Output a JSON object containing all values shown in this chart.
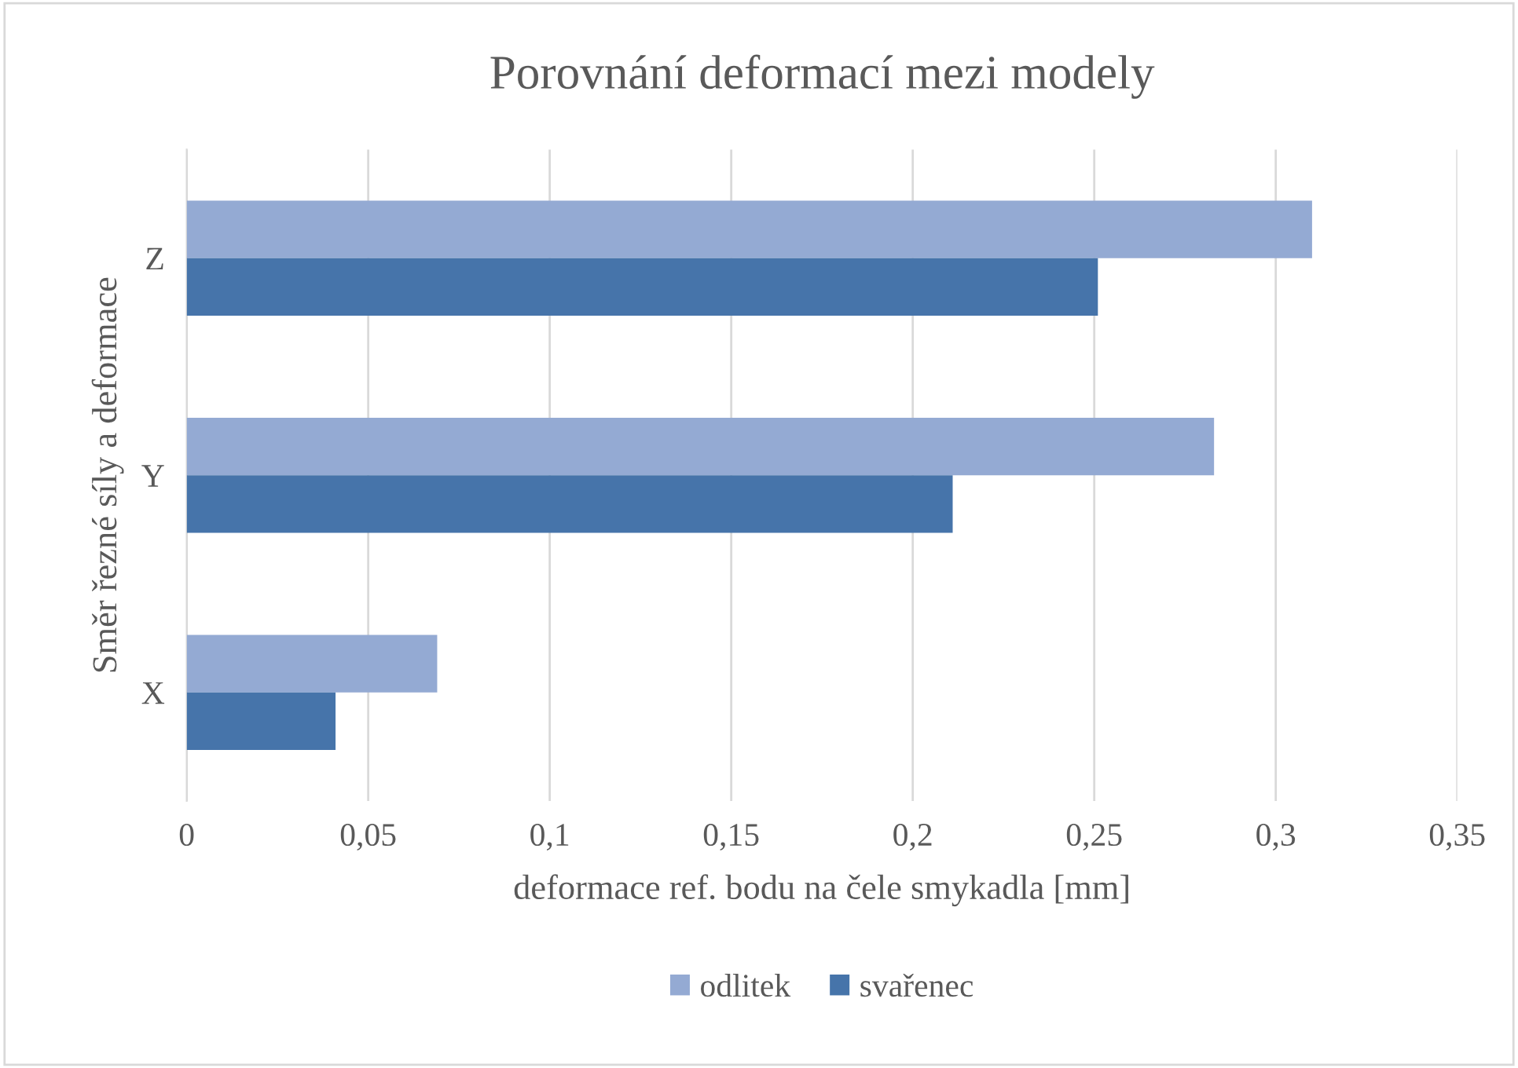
{
  "chart_data": {
    "type": "bar",
    "orientation": "horizontal",
    "title": "Porovnání deformací mezi modely",
    "xlabel": "deformace ref. bodu na čele smykadla [mm]",
    "ylabel": "Směr řezné síly a deformace",
    "categories": [
      "Z",
      "Y",
      "X"
    ],
    "series": [
      {
        "name": "odlitek",
        "color": "#94aad3",
        "values": [
          0.31,
          0.283,
          0.069
        ]
      },
      {
        "name": "svařenec",
        "color": "#4674aa",
        "values": [
          0.251,
          0.211,
          0.041
        ]
      }
    ],
    "xlim": [
      0,
      0.35
    ],
    "xticks": [
      {
        "value": 0,
        "label": "0"
      },
      {
        "value": 0.05,
        "label": "0,05"
      },
      {
        "value": 0.1,
        "label": "0,1"
      },
      {
        "value": 0.15,
        "label": "0,15"
      },
      {
        "value": 0.2,
        "label": "0,2"
      },
      {
        "value": 0.25,
        "label": "0,25"
      },
      {
        "value": 0.3,
        "label": "0,3"
      },
      {
        "value": 0.35,
        "label": "0,35"
      }
    ],
    "grid": "x",
    "legend": "bottom"
  }
}
